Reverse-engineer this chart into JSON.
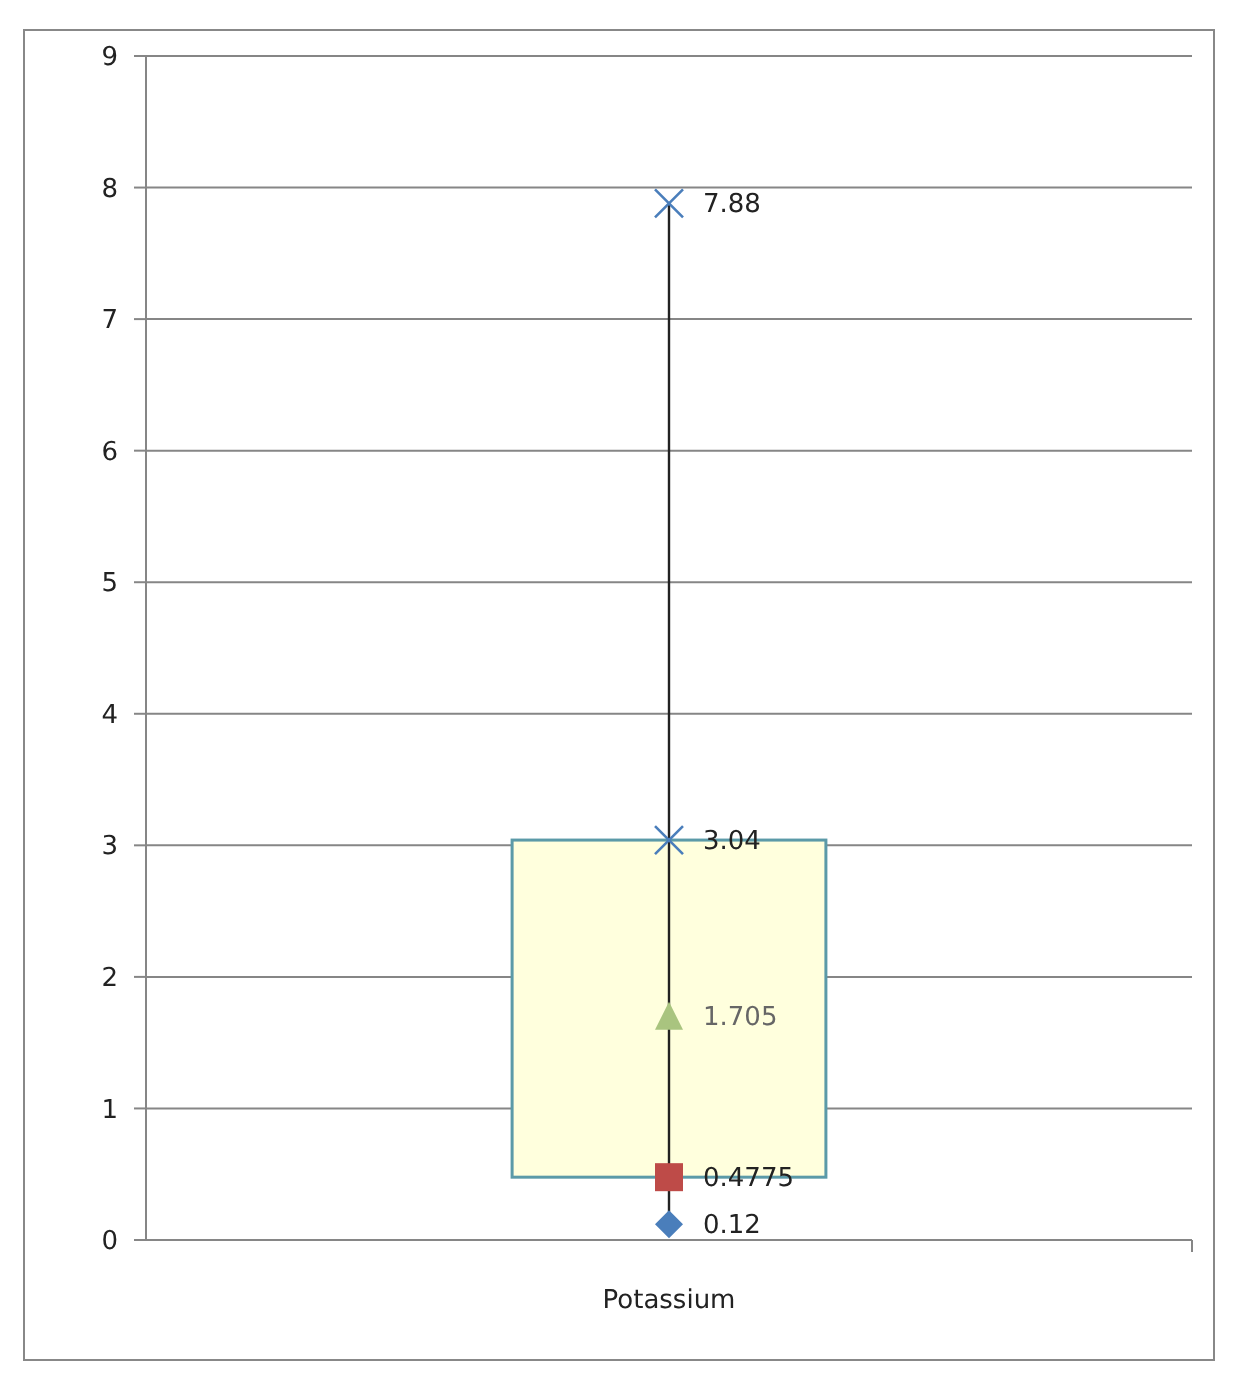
{
  "chart_data": {
    "type": "box",
    "categories": [
      "Potassium"
    ],
    "boxes": [
      {
        "low": 0.12,
        "q1": 0.4775,
        "median": 1.705,
        "q3": 3.04,
        "high": 7.88
      }
    ],
    "color": "#ffffdd",
    "annotations": [
      {
        "text": "1.705",
        "x": "Potassium",
        "y": 1.705
      }
    ],
    "series": [
      {
        "type": "scatter",
        "x": [
          "Potassium"
        ],
        "values": [
          0.12
        ],
        "color": "#4a7ebb",
        "marker": "diamond"
      },
      {
        "type": "scatter",
        "x": [
          "Potassium"
        ],
        "values": [
          0.4775
        ],
        "color": "#be4b48",
        "marker": "square"
      },
      {
        "type": "scatter",
        "x": [
          "Potassium"
        ],
        "values": [
          3.04
        ],
        "color": "#4a7ebb",
        "marker": "cross"
      },
      {
        "type": "scatter",
        "x": [
          "Potassium"
        ],
        "values": [
          7.88
        ],
        "color": "#4a7ebb",
        "marker": "cross"
      }
    ],
    "ylim": [
      0,
      9
    ],
    "yticks": [
      0,
      1,
      2,
      3,
      4,
      5,
      6,
      7,
      8,
      9
    ],
    "grid": "y",
    "data_labels": true
  }
}
